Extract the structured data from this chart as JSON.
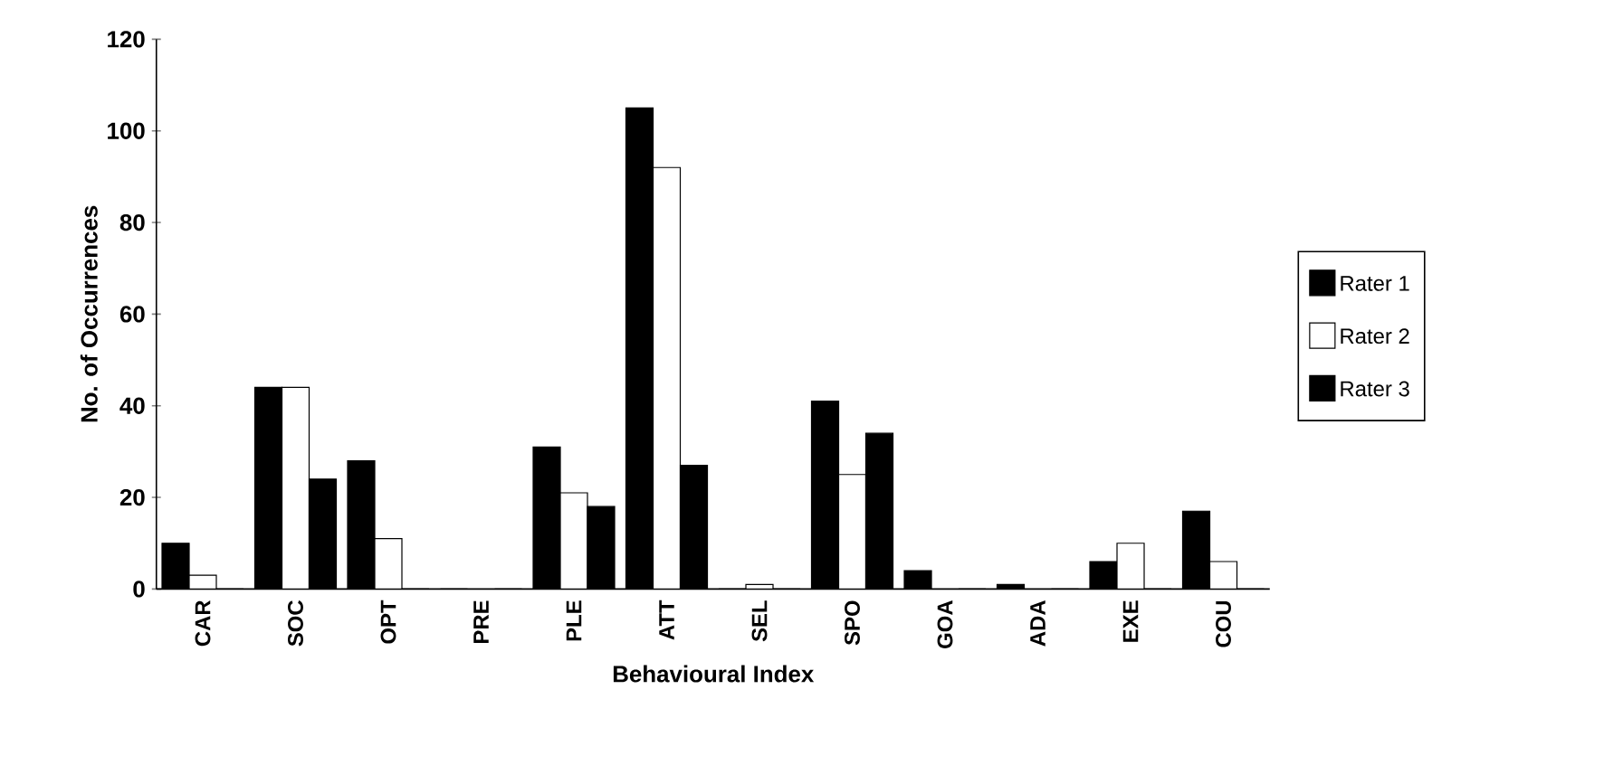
{
  "chart_data": {
    "type": "bar",
    "xlabel": "Behavioural Index",
    "ylabel": "No. of Occurrences",
    "categories": [
      "CAR",
      "SOC",
      "OPT",
      "PRE",
      "PLE",
      "ATT",
      "SEL",
      "SPO",
      "GOA",
      "ADA",
      "EXE",
      "COU"
    ],
    "series": [
      {
        "name": "Rater 1",
        "color": "#000000",
        "values": [
          10,
          44,
          28,
          0,
          31,
          105,
          0,
          41,
          4,
          1,
          6,
          17
        ]
      },
      {
        "name": "Rater 2",
        "color": "#ffffff",
        "values": [
          3,
          44,
          11,
          null,
          21,
          92,
          1,
          25,
          null,
          null,
          10,
          6
        ]
      },
      {
        "name": "Rater 3",
        "color": "#000000",
        "values": [
          0,
          24,
          0,
          0,
          18,
          27,
          0,
          34,
          0,
          0,
          0,
          0
        ]
      }
    ],
    "ylim": [
      0,
      120
    ],
    "yticks": [
      0,
      20,
      40,
      60,
      80,
      100,
      120
    ],
    "legend": "right"
  }
}
